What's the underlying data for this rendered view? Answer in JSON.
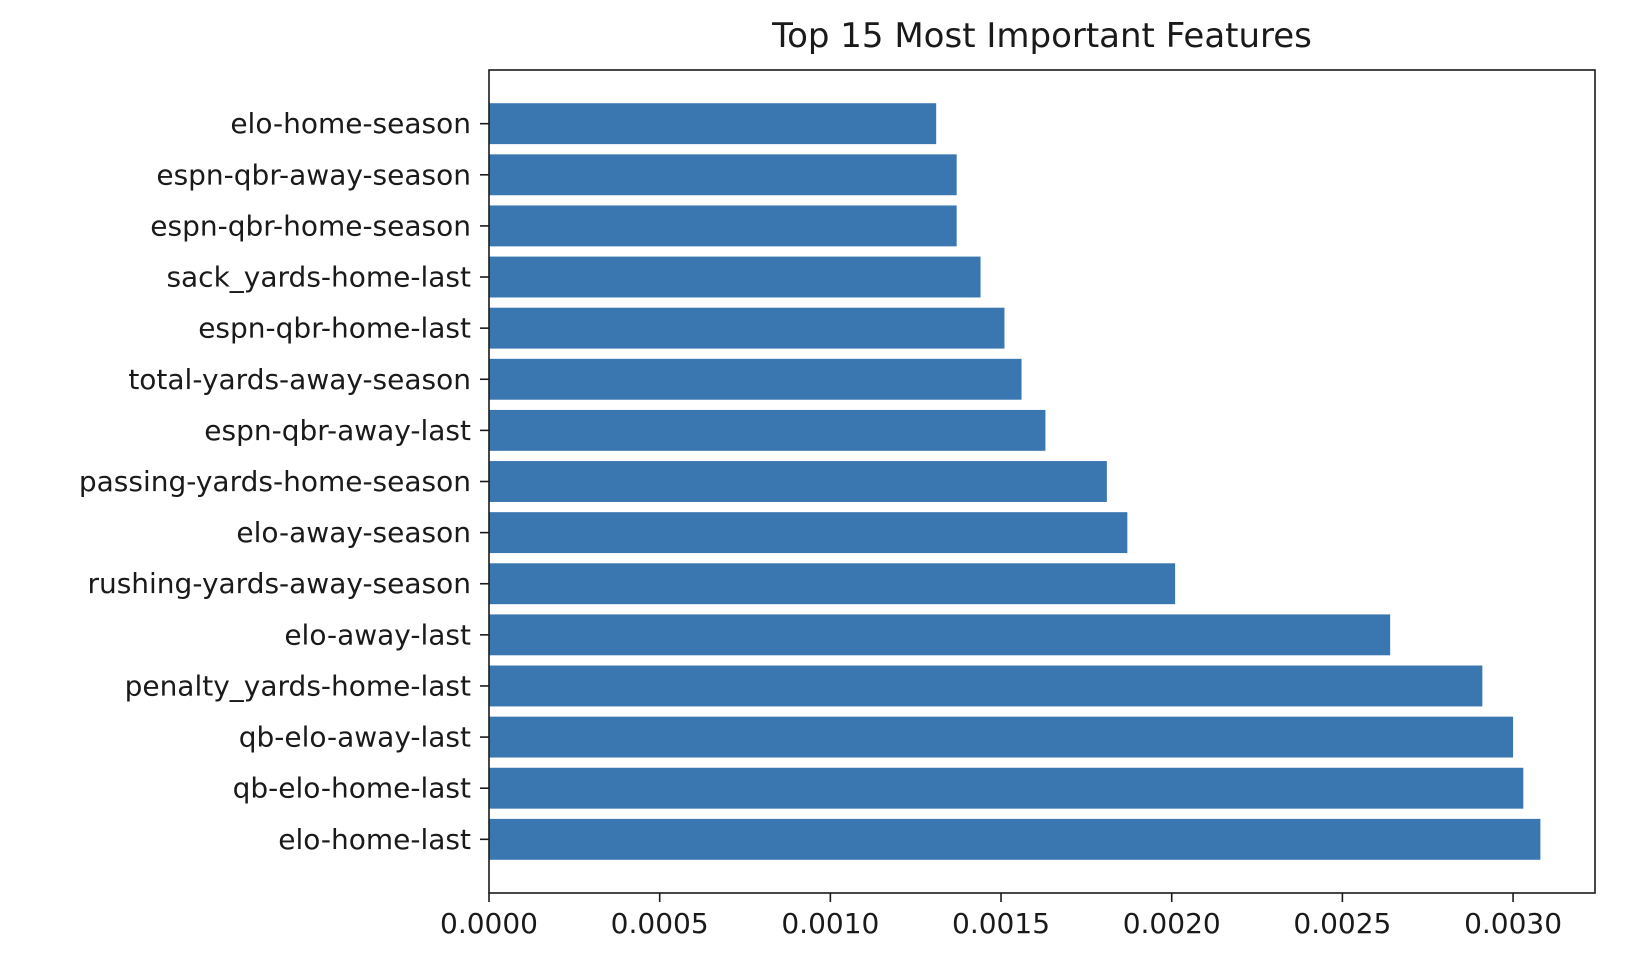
{
  "chart_data": {
    "type": "bar",
    "orientation": "horizontal",
    "title": "Top 15 Most Important Features",
    "xlabel": "",
    "ylabel": "",
    "bar_color": "#3a76b0",
    "grid": false,
    "xlim": [
      0,
      0.00324
    ],
    "x_ticks": [
      "0.0000",
      "0.0005",
      "0.0010",
      "0.0015",
      "0.0020",
      "0.0025",
      "0.0030"
    ],
    "x_tick_values": [
      0,
      0.0005,
      0.001,
      0.0015,
      0.002,
      0.0025,
      0.003
    ],
    "categories": [
      "elo-home-last",
      "qb-elo-home-last",
      "qb-elo-away-last",
      "penalty_yards-home-last",
      "elo-away-last",
      "rushing-yards-away-season",
      "elo-away-season",
      "passing-yards-home-season",
      "espn-qbr-away-last",
      "total-yards-away-season",
      "espn-qbr-home-last",
      "sack_yards-home-last",
      "espn-qbr-home-season",
      "espn-qbr-away-season",
      "elo-home-season"
    ],
    "values": [
      0.00308,
      0.00303,
      0.003,
      0.00291,
      0.00264,
      0.00201,
      0.00187,
      0.00181,
      0.00163,
      0.00156,
      0.00151,
      0.00144,
      0.00137,
      0.00137,
      0.00131
    ]
  }
}
